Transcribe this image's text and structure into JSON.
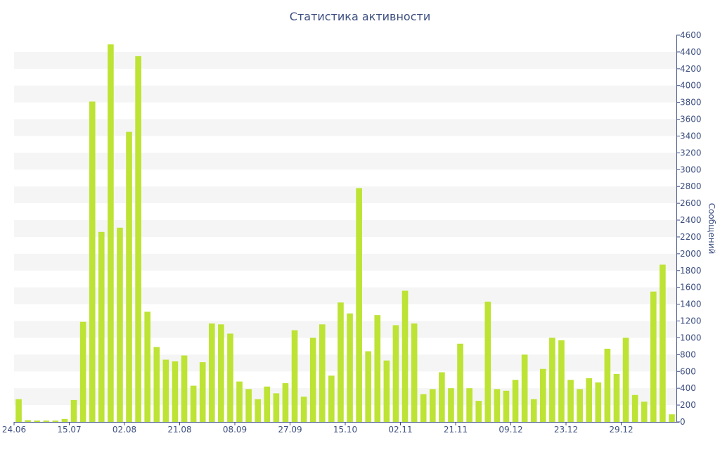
{
  "chart_data": {
    "type": "bar",
    "title": "Статистика активности",
    "xlabel": "",
    "ylabel": "Сообщений",
    "ylim": [
      0,
      4600
    ],
    "y_ticks": [
      0,
      200,
      400,
      600,
      800,
      1000,
      1200,
      1400,
      1600,
      1800,
      2000,
      2200,
      2400,
      2600,
      2800,
      3000,
      3200,
      3400,
      3600,
      3800,
      4000,
      4200,
      4400,
      4600
    ],
    "y_axis_position": "right",
    "grid": "alternating horizontal bands",
    "bar_color": "#bde334",
    "band_color": "#f5f5f5",
    "text_color": "#3d4f80",
    "x_tick_labels": [
      {
        "index": 0,
        "label": "24.06"
      },
      {
        "index": 6,
        "label": "15.07"
      },
      {
        "index": 12,
        "label": "02.08"
      },
      {
        "index": 18,
        "label": "21.08"
      },
      {
        "index": 24,
        "label": "08.09"
      },
      {
        "index": 30,
        "label": "27.09"
      },
      {
        "index": 36,
        "label": "15.10"
      },
      {
        "index": 42,
        "label": "02.11"
      },
      {
        "index": 48,
        "label": "21.11"
      },
      {
        "index": 54,
        "label": "09.12"
      },
      {
        "index": 60,
        "label": "23.12"
      },
      {
        "index": 66,
        "label": "29.12"
      }
    ],
    "values": [
      270,
      20,
      15,
      15,
      15,
      35,
      260,
      1190,
      3810,
      2260,
      4490,
      2310,
      3450,
      4350,
      1310,
      890,
      740,
      720,
      790,
      430,
      710,
      1170,
      1160,
      1050,
      480,
      390,
      270,
      420,
      340,
      460,
      1090,
      300,
      1000,
      1160,
      550,
      1420,
      1290,
      2780,
      840,
      1270,
      730,
      1150,
      1560,
      1170,
      330,
      390,
      590,
      400,
      930,
      400,
      250,
      1430,
      390,
      370,
      500,
      800,
      270,
      630,
      1000,
      970,
      500,
      390,
      520,
      470,
      870,
      570,
      1000,
      320,
      240,
      1550,
      1870,
      90
    ]
  }
}
